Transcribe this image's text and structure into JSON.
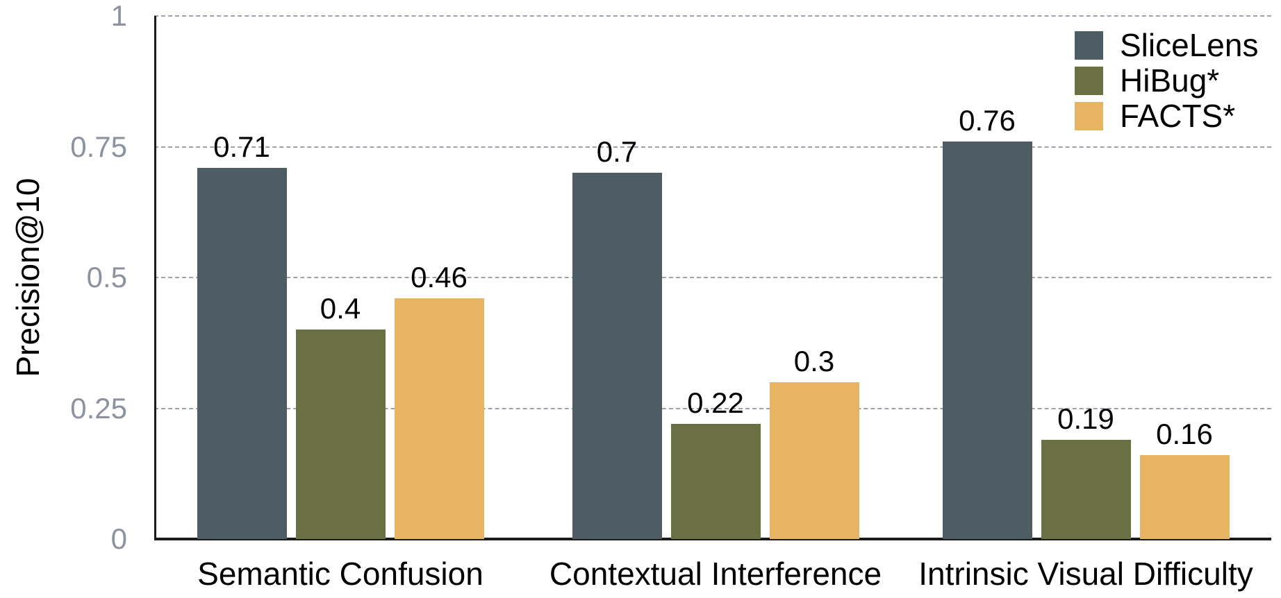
{
  "chart_data": {
    "type": "bar",
    "title": "",
    "ylabel": "Precision@10",
    "categories": [
      "Semantic Confusion",
      "Contextual Interference",
      "Intrinsic Visual Difficulty"
    ],
    "series": [
      {
        "name": "SliceLens",
        "color": "#4d5d63",
        "values": [
          0.71,
          0.7,
          0.76
        ]
      },
      {
        "name": "HiBug*",
        "color": "#6b7044",
        "values": [
          0.4,
          0.22,
          0.19
        ]
      },
      {
        "name": "FACTS*",
        "color": "#e7b464",
        "values": [
          0.46,
          0.3,
          0.16
        ]
      }
    ],
    "value_labels": [
      [
        "0.71",
        "0.4",
        "0.46"
      ],
      [
        "0.7",
        "0.22",
        "0.3"
      ],
      [
        "0.76",
        "0.19",
        "0.16"
      ]
    ],
    "yticks": [
      {
        "value": 0,
        "label": "0"
      },
      {
        "value": 0.25,
        "label": "0.25"
      },
      {
        "value": 0.5,
        "label": "0.5"
      },
      {
        "value": 0.75,
        "label": "0.75"
      },
      {
        "value": 1,
        "label": "1"
      }
    ],
    "ylim": [
      0,
      1
    ],
    "grid": "horizontal-dashed",
    "legend_position": "top-right",
    "colors": {
      "axis": "#1a1a1a",
      "gridline": "#9aa1a9",
      "tick_label": "#8c939f",
      "value_label": "#000000",
      "background": "#ffffff"
    }
  }
}
